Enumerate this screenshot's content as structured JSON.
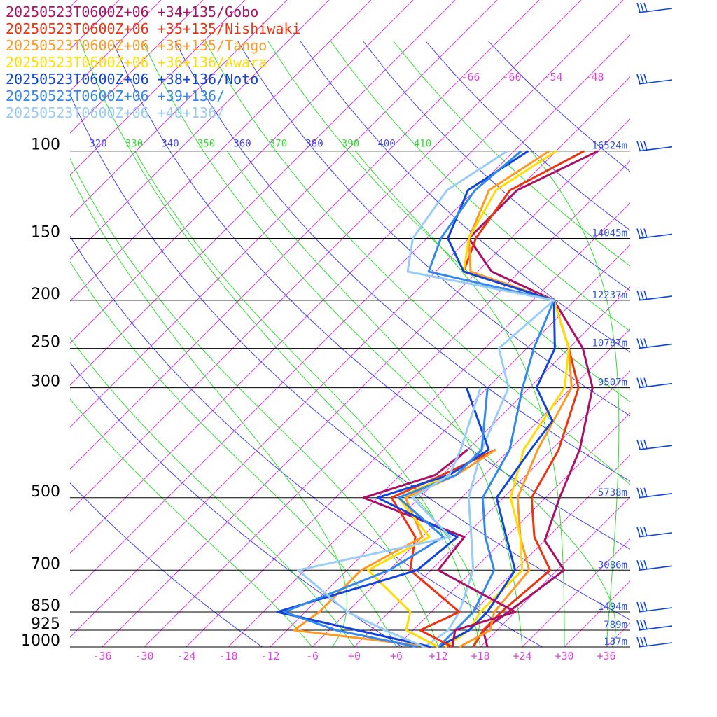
{
  "chart_data": {
    "type": "line",
    "title": "",
    "xlabel": "",
    "ylabel": "",
    "chart_kind": "skew-t",
    "legend_position": "top-left",
    "grid": true,
    "xlim": [
      -40,
      40
    ],
    "x_ticks": [
      "-36",
      "-30",
      "-24",
      "-18",
      "-12",
      "-6",
      "+0",
      "+6",
      "+12",
      "+18",
      "+24",
      "+30",
      "+36"
    ],
    "x_tick_values": [
      -36,
      -30,
      -24,
      -18,
      -12,
      -6,
      0,
      6,
      12,
      18,
      24,
      30,
      36
    ],
    "pressure_levels": [
      {
        "p": 100,
        "label": "100",
        "height": "16524m"
      },
      {
        "p": 150,
        "label": "150",
        "height": "14045m"
      },
      {
        "p": 200,
        "label": "200",
        "height": "12237m"
      },
      {
        "p": 250,
        "label": "250",
        "height": "10787m"
      },
      {
        "p": 300,
        "label": "300",
        "height": "9507m"
      },
      {
        "p": 500,
        "label": "500",
        "height": "5738m"
      },
      {
        "p": 700,
        "label": "700",
        "height": "3086m"
      },
      {
        "p": 850,
        "label": "850",
        "height": "1494m"
      },
      {
        "p": 925,
        "label": "925",
        "height": "789m"
      },
      {
        "p": 1000,
        "label": "1000",
        "height": "137m"
      }
    ],
    "isotherm_labels": [
      {
        "text": "-66",
        "t": -66
      },
      {
        "text": "-60",
        "t": -60
      },
      {
        "text": "-54",
        "t": -54
      },
      {
        "text": "-48",
        "t": -48
      }
    ],
    "theta_labels": [
      {
        "text": "320",
        "color": "#4444ee"
      },
      {
        "text": "330",
        "color": "#33dd33"
      },
      {
        "text": "340",
        "color": "#4444ee"
      },
      {
        "text": "350",
        "color": "#33dd33"
      },
      {
        "text": "360",
        "color": "#4444ee"
      },
      {
        "text": "370",
        "color": "#33dd33"
      },
      {
        "text": "380",
        "color": "#4444ee"
      },
      {
        "text": "390",
        "color": "#33dd33"
      },
      {
        "text": "400",
        "color": "#4444ee"
      },
      {
        "text": "410",
        "color": "#33dd33"
      }
    ],
    "series": [
      {
        "name": "20250523T0600Z+06 +34+135/Gobo",
        "color": "#aa1166",
        "points": [
          [
            1000,
            19
          ],
          [
            925,
            16
          ],
          [
            850,
            17
          ],
          [
            700,
            19
          ],
          [
            610,
            12
          ],
          [
            500,
            8
          ],
          [
            400,
            4
          ],
          [
            300,
            -3
          ],
          [
            250,
            -10
          ],
          [
            200,
            -21
          ],
          [
            175,
            -34
          ],
          [
            150,
            -42
          ],
          [
            120,
            -42
          ],
          [
            100,
            -36
          ]
        ]
      },
      {
        "name": "20250523T0600Z+06 +35+135/Nishiwaki",
        "color": "#ee3311",
        "points": [
          [
            1000,
            17
          ],
          [
            925,
            16
          ],
          [
            850,
            16
          ],
          [
            700,
            17
          ],
          [
            600,
            10
          ],
          [
            500,
            4
          ],
          [
            400,
            1
          ],
          [
            300,
            -5
          ],
          [
            250,
            -12
          ],
          [
            200,
            -21
          ],
          [
            175,
            -38
          ],
          [
            150,
            -41
          ],
          [
            120,
            -43
          ],
          [
            100,
            -38
          ]
        ]
      },
      {
        "name": "20250523T0600Z+06 +36+135/Tango",
        "color": "#ff9922",
        "points": [
          [
            1000,
            15
          ],
          [
            925,
            17
          ],
          [
            850,
            15
          ],
          [
            700,
            14
          ],
          [
            600,
            8
          ],
          [
            500,
            2
          ],
          [
            400,
            -2
          ],
          [
            300,
            -6
          ],
          [
            250,
            -12
          ],
          [
            200,
            -21
          ],
          [
            175,
            -37
          ],
          [
            150,
            -42
          ],
          [
            120,
            -46
          ],
          [
            100,
            -43
          ]
        ]
      },
      {
        "name": "20250523T0600Z+06 +36+136/Awara",
        "color": "#ffdd00",
        "points": [
          [
            1000,
            13
          ],
          [
            925,
            14
          ],
          [
            850,
            13
          ],
          [
            700,
            13
          ],
          [
            600,
            8
          ],
          [
            500,
            1
          ],
          [
            400,
            -4
          ],
          [
            300,
            -7
          ],
          [
            250,
            -12
          ],
          [
            200,
            -21
          ],
          [
            175,
            -38
          ],
          [
            150,
            -42
          ],
          [
            120,
            -45
          ],
          [
            100,
            -42
          ]
        ]
      },
      {
        "name": "20250523T0600Z+06 +38+136/Noto",
        "color": "#1144dd",
        "points": [
          [
            1000,
            12
          ],
          [
            925,
            14
          ],
          [
            850,
            14
          ],
          [
            700,
            12
          ],
          [
            600,
            6
          ],
          [
            500,
            -1
          ],
          [
            400,
            -3
          ],
          [
            350,
            -4
          ],
          [
            300,
            -11
          ],
          [
            250,
            -14
          ],
          [
            200,
            -21
          ],
          [
            175,
            -38
          ],
          [
            150,
            -45
          ],
          [
            120,
            -49
          ],
          [
            100,
            -46
          ]
        ]
      },
      {
        "name": "20250523T0600Z+06 +39+136/",
        "color": "#3388ee",
        "points": [
          [
            1000,
            12
          ],
          [
            925,
            12
          ],
          [
            850,
            12
          ],
          [
            700,
            9
          ],
          [
            600,
            3
          ],
          [
            500,
            -3
          ],
          [
            400,
            -6
          ],
          [
            300,
            -13
          ],
          [
            250,
            -17
          ],
          [
            200,
            -21
          ],
          [
            175,
            -43
          ],
          [
            150,
            -46
          ],
          [
            120,
            -48
          ],
          [
            100,
            -47
          ]
        ]
      },
      {
        "name": "20250523T0600Z+06 +40+136/",
        "color": "#99ccf8",
        "points": [
          [
            1000,
            10
          ],
          [
            925,
            11
          ],
          [
            850,
            10
          ],
          [
            700,
            6
          ],
          [
            600,
            1
          ],
          [
            500,
            -5
          ],
          [
            400,
            -10
          ],
          [
            300,
            -15
          ],
          [
            250,
            -22
          ],
          [
            200,
            -21
          ],
          [
            175,
            -46
          ],
          [
            150,
            -50
          ],
          [
            120,
            -52
          ],
          [
            100,
            -49
          ]
        ]
      }
    ],
    "dewpoint_series": [
      {
        "name": "20250523T0600Z+06 +34+135/Gobo",
        "color": "#aa1166",
        "points": [
          [
            1000,
            14
          ],
          [
            925,
            12
          ],
          [
            850,
            18
          ],
          [
            700,
            1
          ],
          [
            600,
            0
          ],
          [
            500,
            -20
          ],
          [
            450,
            -13
          ],
          [
            400,
            -12
          ]
        ]
      },
      {
        "name": "20250523T0600Z+06 +35+135/Nishiwaki",
        "color": "#ee3311",
        "points": [
          [
            1000,
            14
          ],
          [
            925,
            7
          ],
          [
            850,
            10
          ],
          [
            700,
            -3
          ],
          [
            600,
            -7
          ],
          [
            500,
            -16
          ],
          [
            450,
            -12
          ],
          [
            400,
            -8
          ]
        ]
      },
      {
        "name": "20250523T0600Z+06 +36+135/Tango",
        "color": "#ff9922",
        "points": [
          [
            1000,
            11
          ],
          [
            925,
            -11
          ],
          [
            850,
            -10
          ],
          [
            700,
            -10
          ],
          [
            600,
            -6
          ],
          [
            500,
            -14
          ],
          [
            450,
            -10
          ],
          [
            400,
            -8
          ]
        ]
      },
      {
        "name": "20250523T0600Z+06 +36+136/Awara",
        "color": "#ffdd00",
        "points": [
          [
            1000,
            12
          ],
          [
            925,
            5
          ],
          [
            850,
            3
          ],
          [
            700,
            -9
          ],
          [
            600,
            -5
          ],
          [
            500,
            -15
          ],
          [
            450,
            -11
          ],
          [
            400,
            -9
          ]
        ]
      },
      {
        "name": "20250523T0600Z+06 +38+136/Noto",
        "color": "#1144dd",
        "points": [
          [
            1000,
            11
          ],
          [
            925,
            -2
          ],
          [
            850,
            -16
          ],
          [
            700,
            -2
          ],
          [
            600,
            -1
          ],
          [
            500,
            -18
          ],
          [
            450,
            -11
          ],
          [
            400,
            -9
          ],
          [
            300,
            -21
          ]
        ]
      },
      {
        "name": "20250523T0600Z+06 +39+136/",
        "color": "#3388ee",
        "points": [
          [
            1000,
            9
          ],
          [
            925,
            -5
          ],
          [
            850,
            -15
          ],
          [
            700,
            -6
          ],
          [
            600,
            -3
          ],
          [
            500,
            -15
          ],
          [
            450,
            -10
          ],
          [
            400,
            -10
          ],
          [
            300,
            -18
          ]
        ]
      },
      {
        "name": "20250523T0600Z+06 +40+136/",
        "color": "#99ccf8",
        "points": [
          [
            1000,
            10
          ],
          [
            925,
            2
          ],
          [
            850,
            -6
          ],
          [
            700,
            -19
          ],
          [
            600,
            -2
          ],
          [
            500,
            -13
          ],
          [
            450,
            -11
          ],
          [
            400,
            -13
          ],
          [
            300,
            -19
          ]
        ]
      }
    ],
    "wind_barbs": [
      {
        "p": 60,
        "color": "#1144dd"
      },
      {
        "p": 75,
        "color": "#1144dd"
      },
      {
        "p": 100,
        "color": "#1144dd"
      },
      {
        "p": 150,
        "color": "#1144dd"
      },
      {
        "p": 200,
        "color": "#1144dd"
      },
      {
        "p": 250,
        "color": "#1144dd"
      },
      {
        "p": 300,
        "color": "#1144dd"
      },
      {
        "p": 400,
        "color": "#1144dd"
      },
      {
        "p": 500,
        "color": "#1144dd"
      },
      {
        "p": 600,
        "color": "#1144dd"
      },
      {
        "p": 700,
        "color": "#1144dd"
      },
      {
        "p": 850,
        "color": "#1144dd"
      },
      {
        "p": 925,
        "color": "#1144dd"
      },
      {
        "p": 1000,
        "color": "#1144dd"
      }
    ],
    "colors": {
      "isotherm": "#dd44dd",
      "dry_adiabat": "#4444ee",
      "moist_adiabat": "#33dd33",
      "isobar": "#000000",
      "tick_label": "#dd44dd",
      "height_label": "#3355dd"
    }
  }
}
